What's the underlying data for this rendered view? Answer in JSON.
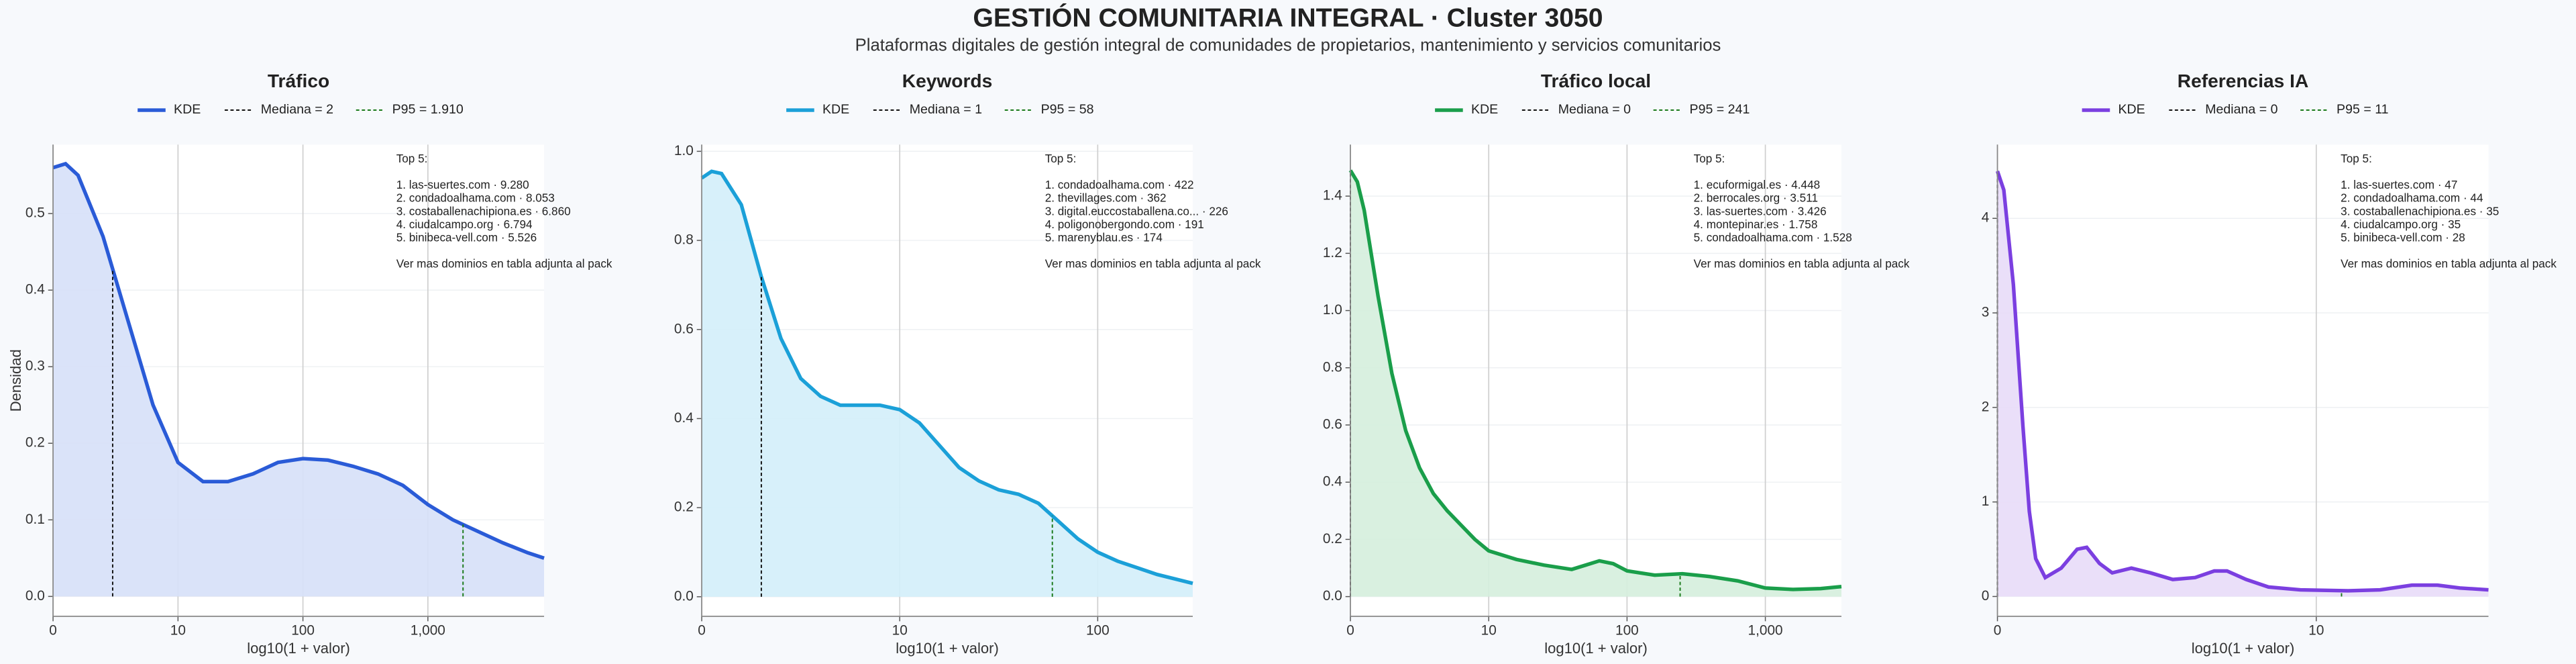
{
  "title": "GESTIÓN COMUNITARIA INTEGRAL · Cluster 3050",
  "subtitle": "Plataformas digitales de gestión integral de comunidades de propietarios, mantenimiento y servicios comunitarios",
  "chart_data": [
    {
      "type": "kde",
      "title": "Tráfico",
      "xlabel": "log10(1 + valor)",
      "ylabel": "Densidad",
      "x": [
        0,
        0.1,
        0.2,
        0.4,
        0.6,
        0.8,
        1.0,
        1.2,
        1.4,
        1.6,
        1.8,
        2.0,
        2.2,
        2.4,
        2.6,
        2.8,
        3.0,
        3.2,
        3.4,
        3.6,
        3.8,
        3.93
      ],
      "series": [
        {
          "name": "KDE",
          "color": "#2a5bd7",
          "fill": "#d6e0f8",
          "values": [
            0.56,
            0.565,
            0.55,
            0.47,
            0.36,
            0.25,
            0.175,
            0.15,
            0.15,
            0.16,
            0.175,
            0.18,
            0.178,
            0.17,
            0.16,
            0.145,
            0.12,
            0.1,
            0.085,
            0.07,
            0.057,
            0.05
          ]
        }
      ],
      "median": {
        "label": "Mediana = 2",
        "value": 2,
        "color": "#111111"
      },
      "p95": {
        "label": "P95 = 1.910",
        "value": 1910,
        "color": "#1a7a1a"
      },
      "annotation": {
        "heading": "Top 5:",
        "items": [
          "1. las-suertes.com · 9.280",
          "2. condadoalhama.com · 8.053",
          "3. costaballenachipiona.es · 6.860",
          "4. ciudalcampo.org · 6.794",
          "5. binibeca-vell.com · 5.526"
        ],
        "footer": "Ver mas dominios en tabla adjunta al pack"
      },
      "xlim": [
        0,
        3.93
      ],
      "ylim": [
        -0.026,
        0.59
      ],
      "xticks": [
        0,
        {
          "value": 1,
          "label": "10"
        },
        {
          "value": 2,
          "label": "100"
        },
        {
          "value": 3,
          "label": "1,000"
        }
      ],
      "yticks": [
        {
          "value": 0,
          "label": "0.0"
        },
        0.1,
        0.2,
        0.3,
        0.4,
        0.5
      ],
      "grid": true
    },
    {
      "type": "kde",
      "title": "Keywords",
      "xlabel": "log10(1 + valor)",
      "x": [
        0,
        0.05,
        0.1,
        0.2,
        0.3,
        0.4,
        0.5,
        0.6,
        0.7,
        0.8,
        0.9,
        1.0,
        1.1,
        1.2,
        1.3,
        1.4,
        1.5,
        1.6,
        1.7,
        1.8,
        1.9,
        2.0,
        2.1,
        2.2,
        2.3,
        2.48
      ],
      "series": [
        {
          "name": "KDE",
          "color": "#1ba0d8",
          "fill": "#d3eefa",
          "values": [
            0.94,
            0.955,
            0.95,
            0.88,
            0.72,
            0.58,
            0.49,
            0.45,
            0.43,
            0.43,
            0.43,
            0.42,
            0.39,
            0.34,
            0.29,
            0.26,
            0.24,
            0.23,
            0.21,
            0.17,
            0.13,
            0.1,
            0.08,
            0.065,
            0.05,
            0.03
          ]
        }
      ],
      "median": {
        "label": "Mediana = 1",
        "value": 1,
        "color": "#111111"
      },
      "p95": {
        "label": "P95 = 58",
        "value": 58,
        "color": "#1a7a1a"
      },
      "annotation": {
        "heading": "Top 5:",
        "items": [
          "1. condadoalhama.com · 422",
          "2. thevillages.com · 362",
          "3. digital.euccostaballena.co... · 226",
          "4. poligonobergondo.com · 191",
          "5. marenyblau.es · 174"
        ],
        "footer": "Ver mas dominios en tabla adjunta al pack"
      },
      "xlim": [
        0,
        2.48
      ],
      "ylim": [
        -0.044,
        1.015
      ],
      "xticks": [
        0,
        {
          "value": 1,
          "label": "10"
        },
        {
          "value": 2,
          "label": "100"
        }
      ],
      "yticks": [
        {
          "value": 0,
          "label": "0.0"
        },
        0.2,
        0.4,
        0.6,
        0.8,
        {
          "value": 1,
          "label": "1.0"
        }
      ],
      "grid": true
    },
    {
      "type": "kde",
      "title": "Tráfico local",
      "xlabel": "log10(1 + valor)",
      "x": [
        0,
        0.05,
        0.1,
        0.2,
        0.3,
        0.4,
        0.5,
        0.6,
        0.7,
        0.8,
        0.9,
        1.0,
        1.2,
        1.4,
        1.6,
        1.7,
        1.8,
        1.9,
        2.0,
        2.2,
        2.4,
        2.6,
        2.8,
        3.0,
        3.2,
        3.4,
        3.55
      ],
      "series": [
        {
          "name": "KDE",
          "color": "#1a9e4a",
          "fill": "#d5eedd",
          "values": [
            1.49,
            1.45,
            1.35,
            1.05,
            0.78,
            0.58,
            0.45,
            0.36,
            0.3,
            0.25,
            0.2,
            0.16,
            0.13,
            0.11,
            0.095,
            0.11,
            0.125,
            0.115,
            0.09,
            0.075,
            0.08,
            0.07,
            0.055,
            0.03,
            0.025,
            0.028,
            0.035
          ]
        }
      ],
      "median": {
        "label": "Mediana = 0",
        "value": 0,
        "color": "#111111"
      },
      "p95": {
        "label": "P95 = 241",
        "value": 241,
        "color": "#1a7a1a"
      },
      "annotation": {
        "heading": "Top 5:",
        "items": [
          "1. ecuformigal.es · 4.448",
          "2. berrocales.org · 3.511",
          "3. las-suertes.com · 3.426",
          "4. montepinar.es · 1.758",
          "5. condadoalhama.com · 1.528"
        ],
        "footer": "Ver mas dominios en tabla adjunta al pack"
      },
      "xlim": [
        0,
        3.55
      ],
      "ylim": [
        -0.069,
        1.58
      ],
      "xticks": [
        0,
        {
          "value": 1,
          "label": "10"
        },
        {
          "value": 2,
          "label": "100"
        },
        {
          "value": 3,
          "label": "1,000"
        }
      ],
      "yticks": [
        {
          "value": 0,
          "label": "0.0"
        },
        0.2,
        0.4,
        0.6,
        0.8,
        {
          "value": 1,
          "label": "1.0"
        },
        1.2,
        1.4
      ],
      "grid": true
    },
    {
      "type": "kde",
      "title": "Referencias IA",
      "xlabel": "log10(1 + valor)",
      "x": [
        0,
        0.02,
        0.05,
        0.08,
        0.1,
        0.12,
        0.15,
        0.2,
        0.25,
        0.28,
        0.32,
        0.36,
        0.42,
        0.48,
        0.55,
        0.62,
        0.68,
        0.72,
        0.78,
        0.85,
        0.95,
        1.1,
        1.2,
        1.3,
        1.38,
        1.45,
        1.54
      ],
      "series": [
        {
          "name": "KDE",
          "color": "#7b3fe0",
          "fill": "#e8dcf8",
          "values": [
            4.5,
            4.3,
            3.3,
            1.8,
            0.9,
            0.4,
            0.2,
            0.3,
            0.5,
            0.52,
            0.35,
            0.25,
            0.3,
            0.25,
            0.18,
            0.2,
            0.27,
            0.27,
            0.18,
            0.1,
            0.07,
            0.06,
            0.07,
            0.12,
            0.12,
            0.09,
            0.07
          ]
        }
      ],
      "median": {
        "label": "Mediana = 0",
        "value": 0,
        "color": "#111111"
      },
      "p95": {
        "label": "P95 = 11",
        "value": 11,
        "color": "#1a7a1a"
      },
      "annotation": {
        "heading": "Top 5:",
        "items": [
          "1. las-suertes.com · 47",
          "2. condadoalhama.com · 44",
          "3. costaballenachipiona.es · 35",
          "4. ciudalcampo.org · 35",
          "5. binibeca-vell.com · 28"
        ],
        "footer": "Ver mas dominios en tabla adjunta al pack"
      },
      "xlim": [
        0,
        1.54
      ],
      "ylim": [
        -0.21,
        4.78
      ],
      "xticks": [
        0,
        {
          "value": 1,
          "label": "10"
        }
      ],
      "yticks": [
        0,
        1,
        2,
        3,
        4
      ],
      "grid": true
    }
  ]
}
